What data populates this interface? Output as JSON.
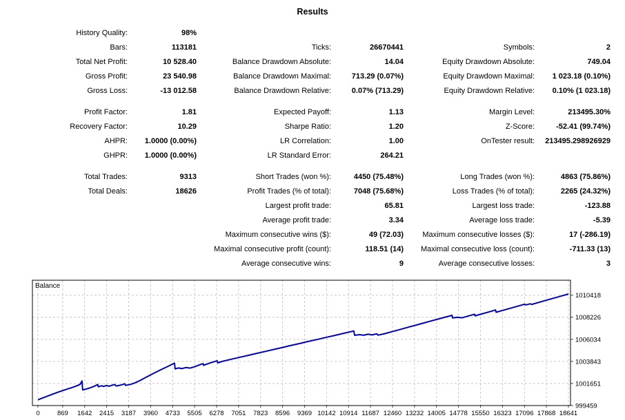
{
  "title": "Results",
  "sections": [
    {
      "rows": [
        [
          "History Quality:",
          "98%",
          "",
          "",
          "",
          ""
        ],
        [
          "Bars:",
          "113181",
          "Ticks:",
          "26670441",
          "Symbols:",
          "2"
        ],
        [
          "Total Net Profit:",
          "10 528.40",
          "Balance Drawdown Absolute:",
          "14.04",
          "Equity Drawdown Absolute:",
          "749.04"
        ],
        [
          "Gross Profit:",
          "23 540.98",
          "Balance Drawdown Maximal:",
          "713.29 (0.07%)",
          "Equity Drawdown Maximal:",
          "1 023.18 (0.10%)"
        ],
        [
          "Gross Loss:",
          "-13 012.58",
          "Balance Drawdown Relative:",
          "0.07% (713.29)",
          "Equity Drawdown Relative:",
          "0.10% (1 023.18)"
        ]
      ]
    },
    {
      "rows": [
        [
          "Profit Factor:",
          "1.81",
          "Expected Payoff:",
          "1.13",
          "Margin Level:",
          "213495.30%"
        ],
        [
          "Recovery Factor:",
          "10.29",
          "Sharpe Ratio:",
          "1.20",
          "Z-Score:",
          "-52.41 (99.74%)"
        ],
        [
          "AHPR:",
          "1.0000 (0.00%)",
          "LR Correlation:",
          "1.00",
          "OnTester result:",
          "213495.298926929"
        ],
        [
          "GHPR:",
          "1.0000 (0.00%)",
          "LR Standard Error:",
          "264.21",
          "",
          ""
        ]
      ]
    },
    {
      "rows": [
        [
          "Total Trades:",
          "9313",
          "Short Trades (won %):",
          "4450 (75.48%)",
          "Long Trades (won %):",
          "4863 (75.86%)"
        ],
        [
          "Total Deals:",
          "18626",
          "Profit Trades (% of total):",
          "7048 (75.68%)",
          "Loss Trades (% of total):",
          "2265 (24.32%)"
        ],
        [
          "",
          "",
          "Largest profit trade:",
          "65.81",
          "Largest loss trade:",
          "-123.88"
        ],
        [
          "",
          "",
          "Average profit trade:",
          "3.34",
          "Average loss trade:",
          "-5.39"
        ],
        [
          "",
          "",
          "Maximum consecutive wins ($):",
          "49 (72.03)",
          "Maximum consecutive losses ($):",
          "17 (-286.19)"
        ],
        [
          "",
          "",
          "Maximal consecutive profit (count):",
          "118.51 (14)",
          "Maximal consecutive loss (count):",
          "-711.33 (13)"
        ],
        [
          "",
          "",
          "Average consecutive wins:",
          "9",
          "Average consecutive losses:",
          "3"
        ]
      ]
    }
  ],
  "chart_data": {
    "type": "line",
    "title": "Balance",
    "xlabel": "",
    "ylabel": "",
    "x_ticks": [
      0,
      869,
      1642,
      2415,
      3187,
      3960,
      4733,
      5505,
      6278,
      7051,
      7823,
      8596,
      9369,
      10142,
      10914,
      11687,
      12460,
      13232,
      14005,
      14778,
      15550,
      16323,
      17096,
      17868,
      18641
    ],
    "y_ticks": [
      999459,
      1001651,
      1003843,
      1006034,
      1008226,
      1010418
    ],
    "xlim": [
      -194,
      18714
    ],
    "ylim": [
      999459,
      1011900
    ],
    "grid": "dashed",
    "grid_color": "#c8c8c8",
    "legend_position": "top-left",
    "series": [
      {
        "name": "Balance",
        "color": "#0000bb",
        "points": [
          [
            0,
            1000030
          ],
          [
            250,
            1000300
          ],
          [
            500,
            1000570
          ],
          [
            750,
            1000830
          ],
          [
            1000,
            1001070
          ],
          [
            1200,
            1001250
          ],
          [
            1350,
            1001400
          ],
          [
            1480,
            1001560
          ],
          [
            1550,
            1001900
          ],
          [
            1570,
            1001010
          ],
          [
            1700,
            1001100
          ],
          [
            1850,
            1001230
          ],
          [
            2000,
            1001400
          ],
          [
            2100,
            1001550
          ],
          [
            2120,
            1001330
          ],
          [
            2250,
            1001430
          ],
          [
            2300,
            1001350
          ],
          [
            2400,
            1001440
          ],
          [
            2500,
            1001380
          ],
          [
            2600,
            1001470
          ],
          [
            2700,
            1001550
          ],
          [
            2750,
            1001400
          ],
          [
            2900,
            1001480
          ],
          [
            3050,
            1001620
          ],
          [
            3080,
            1001460
          ],
          [
            3250,
            1001560
          ],
          [
            3400,
            1001700
          ],
          [
            3600,
            1001960
          ],
          [
            3800,
            1002270
          ],
          [
            4000,
            1002560
          ],
          [
            4200,
            1002850
          ],
          [
            4400,
            1003120
          ],
          [
            4600,
            1003390
          ],
          [
            4750,
            1003610
          ],
          [
            4800,
            1003670
          ],
          [
            4820,
            1003100
          ],
          [
            4950,
            1003190
          ],
          [
            5050,
            1003120
          ],
          [
            5200,
            1003230
          ],
          [
            5350,
            1003180
          ],
          [
            5500,
            1003310
          ],
          [
            5700,
            1003520
          ],
          [
            5800,
            1003620
          ],
          [
            5820,
            1003460
          ],
          [
            6000,
            1003640
          ],
          [
            6200,
            1003820
          ],
          [
            6300,
            1003900
          ],
          [
            6320,
            1003700
          ],
          [
            6500,
            1003860
          ],
          [
            6800,
            1004060
          ],
          [
            7100,
            1004260
          ],
          [
            7400,
            1004450
          ],
          [
            7700,
            1004650
          ],
          [
            8000,
            1004840
          ],
          [
            8300,
            1005040
          ],
          [
            8600,
            1005230
          ],
          [
            8900,
            1005430
          ],
          [
            9200,
            1005620
          ],
          [
            9500,
            1005820
          ],
          [
            9800,
            1006010
          ],
          [
            10100,
            1006210
          ],
          [
            10400,
            1006400
          ],
          [
            10700,
            1006600
          ],
          [
            10900,
            1006730
          ],
          [
            11100,
            1006860
          ],
          [
            11130,
            1006430
          ],
          [
            11300,
            1006500
          ],
          [
            11450,
            1006440
          ],
          [
            11600,
            1006540
          ],
          [
            11750,
            1006470
          ],
          [
            11900,
            1006580
          ],
          [
            11950,
            1006450
          ],
          [
            12150,
            1006570
          ],
          [
            12400,
            1006760
          ],
          [
            12700,
            1006990
          ],
          [
            13000,
            1007230
          ],
          [
            13300,
            1007460
          ],
          [
            13600,
            1007690
          ],
          [
            13900,
            1007920
          ],
          [
            14200,
            1008150
          ],
          [
            14450,
            1008340
          ],
          [
            14550,
            1008420
          ],
          [
            14570,
            1008160
          ],
          [
            14750,
            1008220
          ],
          [
            14900,
            1008170
          ],
          [
            15100,
            1008330
          ],
          [
            15340,
            1008520
          ],
          [
            15360,
            1008370
          ],
          [
            15600,
            1008560
          ],
          [
            15900,
            1008800
          ],
          [
            16080,
            1008950
          ],
          [
            16100,
            1008720
          ],
          [
            16300,
            1008880
          ],
          [
            16600,
            1009120
          ],
          [
            16900,
            1009360
          ],
          [
            17100,
            1009520
          ],
          [
            17150,
            1009450
          ],
          [
            17300,
            1009560
          ],
          [
            17350,
            1009500
          ],
          [
            17500,
            1009620
          ],
          [
            17800,
            1009860
          ],
          [
            18100,
            1010100
          ],
          [
            18400,
            1010340
          ],
          [
            18641,
            1010530
          ]
        ]
      }
    ]
  }
}
